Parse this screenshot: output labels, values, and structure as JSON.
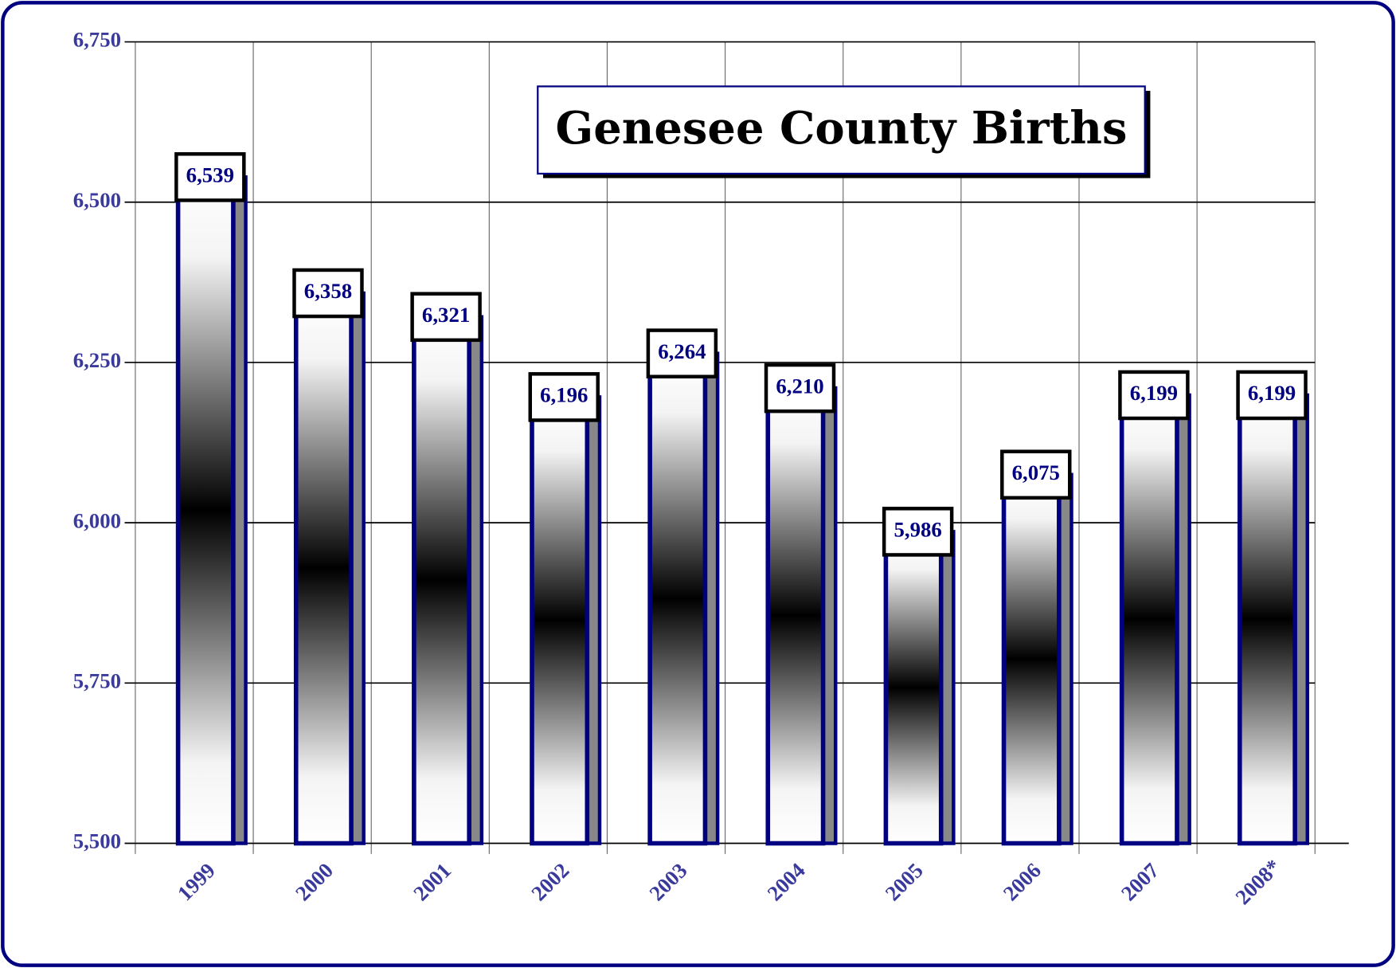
{
  "chart_data": {
    "type": "bar",
    "title": "Genesee County Births",
    "categories": [
      "1999",
      "2000",
      "2001",
      "2002",
      "2003",
      "2004",
      "2005",
      "2006",
      "2007",
      "2008*"
    ],
    "values": [
      6539,
      6358,
      6321,
      6196,
      6264,
      6210,
      5986,
      6075,
      6199,
      6199
    ],
    "value_labels": [
      "6,539",
      "6,358",
      "6,321",
      "6,196",
      "6,264",
      "6,210",
      "5,986",
      "6,075",
      "6,199",
      "6,199"
    ],
    "color": "#000080",
    "ylim": [
      5500,
      6750
    ],
    "yticks": [
      {
        "value": 5500,
        "label": "5,500"
      },
      {
        "value": 5750,
        "label": "5,750"
      },
      {
        "value": 6000,
        "label": "6,000"
      },
      {
        "value": 6250,
        "label": "6,250"
      },
      {
        "value": 6500,
        "label": "6,500"
      },
      {
        "value": 6750,
        "label": "6,750"
      }
    ],
    "grid": true
  }
}
